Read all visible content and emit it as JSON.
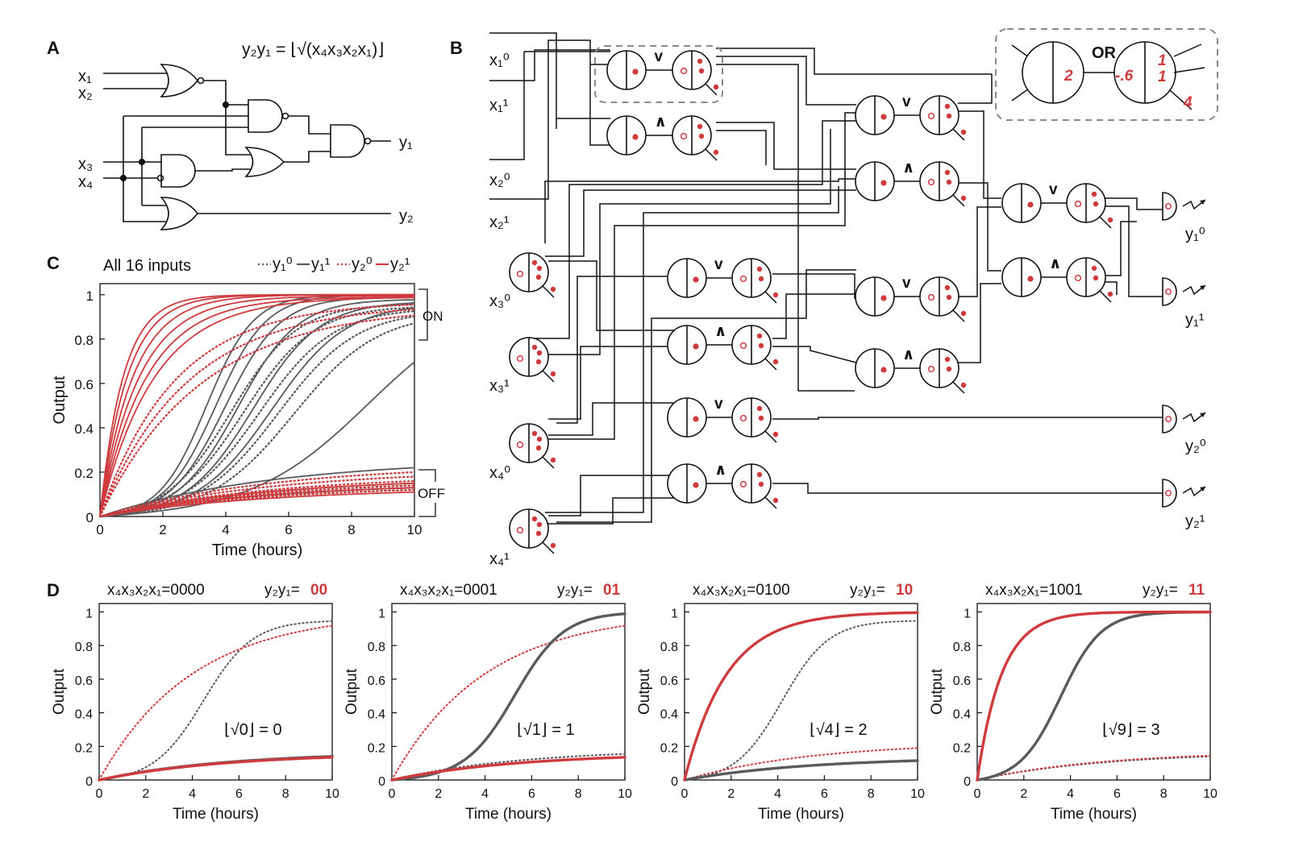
{
  "panels": {
    "A": {
      "letter": "A",
      "formula": "y₂y₁ = ⌊√(x₄x₃x₂x₁)⌋",
      "inputs": [
        "x₁",
        "x₂",
        "x₃",
        "x₄"
      ],
      "outputs": [
        "y₁",
        "y₂"
      ]
    },
    "B": {
      "letter": "B",
      "inputs": [
        "x₁⁰",
        "x₁¹",
        "x₂⁰",
        "x₂¹",
        "x₃⁰",
        "x₃¹",
        "x₄⁰",
        "x₄¹"
      ],
      "outputs": [
        "y₁⁰",
        "y₁¹",
        "y₂⁰",
        "y₂¹"
      ],
      "gate_or": "∨",
      "gate_and": "∧",
      "inset": {
        "label": "OR",
        "left_value": "2",
        "right_values": [
          "-.6",
          "1",
          "1",
          "4"
        ]
      }
    },
    "C": {
      "letter": "C",
      "title": "All 16 inputs",
      "legend": [
        "y₁⁰",
        "y₁¹",
        "y₂⁰",
        "y₂¹"
      ],
      "on_label": "ON",
      "off_label": "OFF"
    },
    "D": {
      "letter": "D"
    }
  },
  "colors": {
    "red": "#cf3a3d",
    "gray": "#595a5e",
    "dash_box": "#8a8a8a",
    "line": "#111111"
  },
  "chart_data": [
    {
      "panel": "C",
      "type": "line",
      "title": "All 16 inputs",
      "xlabel": "Time (hours)",
      "ylabel": "Output",
      "xlim": [
        0,
        10
      ],
      "ylim": [
        0,
        1.05
      ],
      "xticks": [
        0,
        2,
        4,
        6,
        8,
        10
      ],
      "yticks": [
        0,
        0.2,
        0.4,
        0.6,
        0.8,
        1
      ],
      "series": [
        {
          "name": "y₁⁰",
          "style": "dotted",
          "color": "gray",
          "curves": [
            {
              "type": "sig",
              "a": 0.04,
              "t50": 4.2,
              "k": 0.95,
              "top": 0.96
            },
            {
              "type": "sig",
              "a": 0.04,
              "t50": 4.6,
              "k": 0.9,
              "top": 0.95
            },
            {
              "type": "sig",
              "a": 0.04,
              "t50": 5.1,
              "k": 0.85,
              "top": 0.94
            },
            {
              "type": "sig",
              "a": 0.04,
              "t50": 5.7,
              "k": 0.8,
              "top": 0.93
            },
            {
              "type": "sig",
              "a": 0.04,
              "t50": 6.2,
              "k": 0.75,
              "top": 0.92
            },
            {
              "type": "sat",
              "a": 0.14
            },
            {
              "type": "sat",
              "a": 0.13
            },
            {
              "type": "sat",
              "a": 0.12
            }
          ]
        },
        {
          "name": "y₁¹",
          "style": "solid",
          "color": "gray",
          "curves": [
            {
              "type": "sig",
              "a": 0.05,
              "t50": 3.4,
              "k": 1.35,
              "top": 1.0
            },
            {
              "type": "sig",
              "a": 0.05,
              "t50": 3.7,
              "k": 1.25,
              "top": 1.0
            },
            {
              "type": "sig",
              "a": 0.05,
              "t50": 4.0,
              "k": 1.15,
              "top": 0.99
            },
            {
              "type": "sig",
              "a": 0.05,
              "t50": 4.4,
              "k": 1.05,
              "top": 0.98
            },
            {
              "type": "sig",
              "a": 0.05,
              "t50": 4.9,
              "k": 0.95,
              "top": 0.97
            },
            {
              "type": "sig",
              "a": 0.05,
              "t50": 5.5,
              "k": 0.85,
              "top": 0.96
            },
            {
              "type": "sig",
              "a": 0.05,
              "t50": 8.6,
              "k": 0.55,
              "top": 1.0
            },
            {
              "type": "sat",
              "a": 0.22
            },
            {
              "type": "sat",
              "a": 0.15
            },
            {
              "type": "sat",
              "a": 0.13
            }
          ]
        },
        {
          "name": "y₂⁰",
          "style": "dotted",
          "color": "red",
          "curves": [
            {
              "type": "exp",
              "rate": 0.42,
              "top": 0.97
            },
            {
              "type": "exp",
              "rate": 0.36,
              "top": 0.96
            },
            {
              "type": "exp",
              "rate": 0.31,
              "top": 0.95
            },
            {
              "type": "sat",
              "a": 0.2
            },
            {
              "type": "sat",
              "a": 0.18
            },
            {
              "type": "sat",
              "a": 0.16
            },
            {
              "type": "sat",
              "a": 0.14
            },
            {
              "type": "sat",
              "a": 0.12
            }
          ]
        },
        {
          "name": "y₂¹",
          "style": "solid",
          "color": "red",
          "curves": [
            {
              "type": "exp",
              "rate": 1.35,
              "top": 1.0
            },
            {
              "type": "exp",
              "rate": 1.15,
              "top": 1.0
            },
            {
              "type": "exp",
              "rate": 0.95,
              "top": 1.0
            },
            {
              "type": "exp",
              "rate": 0.8,
              "top": 0.995
            },
            {
              "type": "exp",
              "rate": 0.68,
              "top": 0.99
            },
            {
              "type": "exp",
              "rate": 0.58,
              "top": 0.99
            },
            {
              "type": "sat",
              "a": 0.15
            },
            {
              "type": "sat",
              "a": 0.13
            },
            {
              "type": "sat",
              "a": 0.11
            }
          ]
        }
      ]
    },
    {
      "panel": "D",
      "type": "line",
      "xlabel": "Time (hours)",
      "ylabel": "Output",
      "xlim": [
        0,
        10
      ],
      "ylim": [
        0,
        1.05
      ],
      "xticks": [
        0,
        2,
        4,
        6,
        8,
        10
      ],
      "yticks": [
        0,
        0.2,
        0.4,
        0.6,
        0.8,
        1
      ],
      "subplots": [
        {
          "input_label": "x₄x₃x₂x₁=0000",
          "out_label": "y₂y₁=",
          "out_value": "00",
          "annotation": "⌊√0⌋ = 0",
          "curves": [
            {
              "name": "y₁⁰",
              "style": "dotted",
              "color": "gray",
              "type": "sig",
              "a": 0.04,
              "t50": 4.5,
              "k": 0.95,
              "top": 0.95
            },
            {
              "name": "y₁¹",
              "style": "solid",
              "color": "gray",
              "type": "sat",
              "a": 0.14
            },
            {
              "name": "y₂⁰",
              "style": "dotted",
              "color": "red",
              "type": "exp",
              "rate": 0.25,
              "top": 1.0
            },
            {
              "name": "y₂¹",
              "style": "solid",
              "color": "red",
              "type": "sat",
              "a": 0.135
            }
          ]
        },
        {
          "input_label": "x₄x₃x₂x₁=0001",
          "out_label": "y₂y₁=",
          "out_value": "01",
          "annotation": "⌊√1⌋ = 1",
          "curves": [
            {
              "name": "y₁⁰",
              "style": "dotted",
              "color": "gray",
              "type": "sat",
              "a": 0.155
            },
            {
              "name": "y₁¹",
              "style": "solid",
              "color": "gray",
              "type": "sig",
              "a": 0.05,
              "t50": 5.3,
              "k": 0.95,
              "top": 1.0
            },
            {
              "name": "y₂⁰",
              "style": "dotted",
              "color": "red",
              "type": "exp",
              "rate": 0.25,
              "top": 1.0
            },
            {
              "name": "y₂¹",
              "style": "solid",
              "color": "red",
              "type": "sat",
              "a": 0.135
            }
          ]
        },
        {
          "input_label": "x₄x₃x₂x₁=0100",
          "out_label": "y₂y₁=",
          "out_value": "10",
          "annotation": "⌊√4⌋ = 2",
          "curves": [
            {
              "name": "y₁⁰",
              "style": "dotted",
              "color": "gray",
              "type": "sig",
              "a": 0.03,
              "t50": 4.2,
              "k": 1.0,
              "top": 0.95
            },
            {
              "name": "y₁¹",
              "style": "solid",
              "color": "gray",
              "type": "sat",
              "a": 0.115
            },
            {
              "name": "y₂⁰",
              "style": "dotted",
              "color": "red",
              "type": "sat",
              "a": 0.19
            },
            {
              "name": "y₂¹",
              "style": "solid",
              "color": "red",
              "type": "exp",
              "rate": 0.55,
              "top": 1.0
            }
          ]
        },
        {
          "input_label": "x₄x₃x₂x₁=1001",
          "out_label": "y₂y₁=",
          "out_value": "11",
          "annotation": "⌊√9⌋ = 3",
          "curves": [
            {
              "name": "y₁⁰",
              "style": "dotted",
              "color": "gray",
              "type": "sat",
              "a": 0.14
            },
            {
              "name": "y₁¹",
              "style": "solid",
              "color": "gray",
              "type": "sig",
              "a": 0.05,
              "t50": 3.6,
              "k": 1.15,
              "top": 1.0
            },
            {
              "name": "y₂⁰",
              "style": "dotted",
              "color": "red",
              "type": "sat",
              "a": 0.145
            },
            {
              "name": "y₂¹",
              "style": "solid",
              "color": "red",
              "type": "exp",
              "rate": 0.95,
              "top": 1.0
            }
          ]
        }
      ]
    }
  ]
}
